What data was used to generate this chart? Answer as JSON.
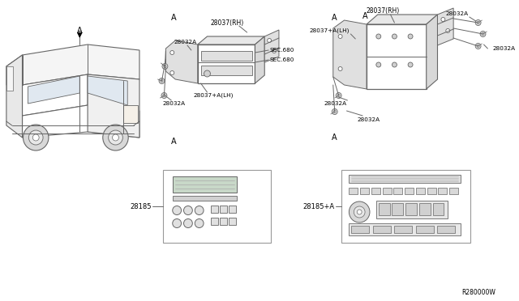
{
  "bg_color": "#ffffff",
  "lc": "#aaaaaa",
  "dc": "#666666",
  "tc": "#333333",
  "parts": {
    "28032A": "28032A",
    "28037RH": "28037(RH)",
    "28037LH": "28037+A(LH)",
    "SEC680a": "SEC.680",
    "SEC680b": "SEC.680",
    "28185": "28185",
    "28185A": "28185+A",
    "R280000W": "R280000W",
    "A": "A"
  },
  "figsize": [
    6.4,
    3.72
  ],
  "dpi": 100
}
